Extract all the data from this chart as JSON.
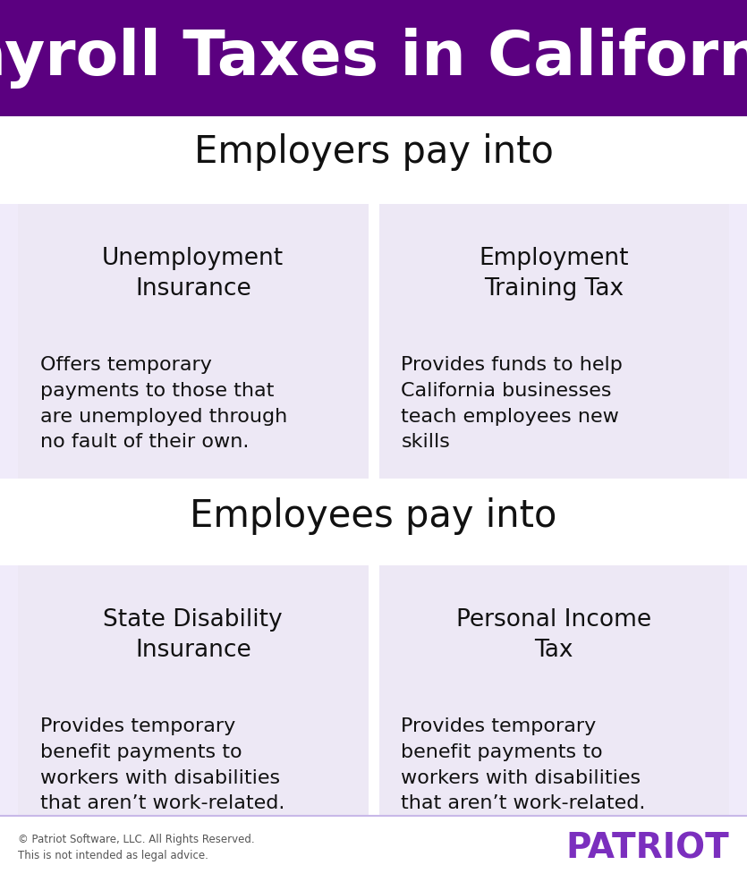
{
  "title": "Payroll Taxes in California",
  "title_bg_color": "#5B0080",
  "title_text_color": "#FFFFFF",
  "bg_color": "#FFFFFF",
  "card_bg_color": "#EDE8F5",
  "section_label_color": "#111111",
  "card_text_color": "#111111",
  "footer_left_1": "© Patriot Software, LLC. All Rights Reserved.",
  "footer_left_2": "This is not intended as legal advice.",
  "footer_right": "PATRIOT",
  "footer_right_color": "#7B2FBE",
  "section1_label": "Employers pay into",
  "section2_label": "Employees pay into",
  "cards": [
    {
      "title": "Unemployment\nInsurance",
      "body": "Offers temporary\npayments to those that\nare unemployed through\nno fault of their own.",
      "col": 0,
      "row": 0
    },
    {
      "title": "Employment\nTraining Tax",
      "body": "Provides funds to help\nCalifornia businesses\nteach employees new\nskills",
      "col": 1,
      "row": 0
    },
    {
      "title": "State Disability\nInsurance",
      "body": "Provides temporary\nbenefit payments to\nworkers with disabilities\nthat aren’t work-related.",
      "col": 0,
      "row": 1
    },
    {
      "title": "Personal Income\nTax",
      "body": "Provides temporary\nbenefit payments to\nworkers with disabilities\nthat aren’t work-related.",
      "col": 1,
      "row": 1
    }
  ],
  "divider_color": "#C8B8E8",
  "card_section_bg": "#F0EBFA",
  "fig_width": 835,
  "fig_height": 986,
  "dpi": 100
}
